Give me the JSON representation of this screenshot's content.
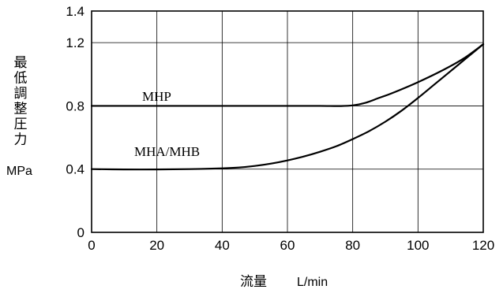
{
  "chart_data": {
    "type": "line",
    "ylabel": "最低調整圧力",
    "yunit": "MPa",
    "xlabel": "流量",
    "xunit": "L/min",
    "xlim": [
      0,
      120
    ],
    "ylim": [
      0,
      1.4
    ],
    "xticks": [
      0,
      20,
      40,
      60,
      80,
      100,
      120
    ],
    "yticks": [
      0,
      0.4,
      0.8,
      1.2,
      1.4
    ],
    "ytick_labels": [
      "0",
      "0.4",
      "0.8",
      "1.2",
      "1.4"
    ],
    "grid": true,
    "series": [
      {
        "name": "MHP",
        "x": [
          0,
          20,
          40,
          60,
          70,
          76,
          80,
          84,
          88,
          92,
          100,
          108,
          114,
          120
        ],
        "y": [
          0.8,
          0.8,
          0.8,
          0.8,
          0.8,
          0.799,
          0.803,
          0.82,
          0.85,
          0.88,
          0.95,
          1.03,
          1.1,
          1.19
        ]
      },
      {
        "name": "MHA/MHB",
        "x": [
          0,
          10,
          20,
          30,
          40,
          45,
          50,
          55,
          60,
          65,
          70,
          75,
          80,
          85,
          90,
          95,
          100,
          105,
          110,
          115,
          120
        ],
        "y": [
          0.4,
          0.398,
          0.398,
          0.4,
          0.405,
          0.41,
          0.42,
          0.435,
          0.455,
          0.48,
          0.51,
          0.545,
          0.59,
          0.64,
          0.7,
          0.77,
          0.85,
          0.935,
          1.02,
          1.105,
          1.19
        ]
      }
    ]
  }
}
